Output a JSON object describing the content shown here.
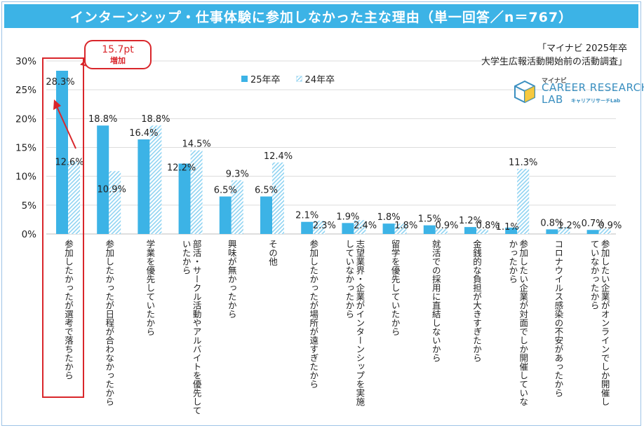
{
  "title": "インターンシップ・仕事体験に参加しなかった主な理由（単一回答／n＝767）",
  "source": [
    "「マイナビ 2025年卒",
    "大学生広報活動開始前の活動調査」"
  ],
  "logo": {
    "brand": "マイナビ",
    "name_line1": "CAREER RESEARCH",
    "name_line2": "LAB",
    "sub": "キャリアリサーチLab"
  },
  "callout": {
    "value": "15.7pt",
    "label": "増加"
  },
  "colors": {
    "title_bg": "#3cb3e6",
    "series_25": "#3cb3e6",
    "series_24": "#8fd3f2",
    "highlight": "#d9262b"
  },
  "chart_data": {
    "type": "bar",
    "title": "インターンシップ・仕事体験に参加しなかった主な理由（単一回答／n＝767）",
    "ylim": [
      0,
      30
    ],
    "yticks": [
      "0%",
      "5%",
      "10%",
      "15%",
      "20%",
      "25%",
      "30%"
    ],
    "ytick_values": [
      0,
      5,
      10,
      15,
      20,
      25,
      30
    ],
    "legend_position": "top-center",
    "categories": [
      "参加したかったが選考で落ちたから",
      "参加したかったが日程が合わなかったから",
      "学業を優先していたから",
      "部活・サークル活動やアルバイトを優先して\nいたから",
      "興味が無かったから",
      "その他",
      "参加したかったが場所が遠すぎたから",
      "志望業界・企業がインターンシップを実施\nしていなかったから",
      "留学を優先していたから",
      "就活での採用に直結しないから",
      "金銭的な負担が大きすぎたから",
      "参加したい企業が対面でしか開催していな\nかったから",
      "コロナウイルス感染の不安があったから",
      "参加したい企業がオンラインでしか開催し\nていなかったから"
    ],
    "series": [
      {
        "name": "25年卒",
        "values": [
          28.3,
          18.8,
          16.4,
          12.2,
          6.5,
          6.5,
          2.1,
          1.9,
          1.8,
          1.5,
          1.2,
          1.1,
          0.8,
          0.7
        ],
        "labels": [
          "28.3%",
          "18.8%",
          "16.4%",
          "12.2%",
          "6.5%",
          "6.5%",
          "2.1%",
          "1.9%",
          "1.8%",
          "1.5%",
          "1.2%",
          "1.1%",
          "0.8%",
          "0.7%"
        ]
      },
      {
        "name": "24年卒",
        "values": [
          12.6,
          10.9,
          18.8,
          14.5,
          9.3,
          12.4,
          2.3,
          2.4,
          1.8,
          0.9,
          0.8,
          11.3,
          1.2,
          0.9
        ],
        "labels": [
          "12.6%",
          "10.9%",
          "18.8%",
          "14.5%",
          "9.3%",
          "12.4%",
          "2.3%",
          "2.4%",
          "1.8%",
          "0.9%",
          "0.8%",
          "11.3%",
          "1.2%",
          "0.9%"
        ]
      }
    ]
  }
}
